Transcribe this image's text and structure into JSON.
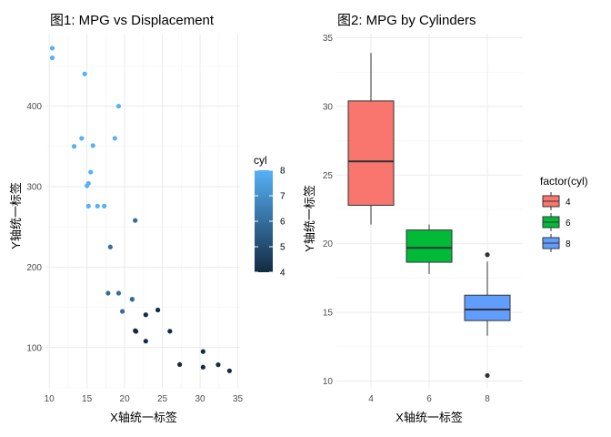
{
  "chart_data": [
    {
      "type": "scatter",
      "title": "图1: MPG vs Displacement",
      "xlabel": "X轴统一标签",
      "ylabel": "Y轴统一标签",
      "xlim": [
        9.5,
        35.3
      ],
      "ylim": [
        50,
        490
      ],
      "xticks": [
        "10",
        "15",
        "20",
        "25",
        "30",
        "35"
      ],
      "yticks": [
        "100",
        "200",
        "300",
        "400"
      ],
      "legend": {
        "title": "cyl",
        "position": "right",
        "labels": [
          "8",
          "7",
          "6",
          "5",
          "4"
        ],
        "low_color": "#132B43",
        "high_color": "#56B1F7"
      },
      "points": [
        {
          "x": 21.0,
          "y": 160,
          "cyl": 6
        },
        {
          "x": 21.0,
          "y": 160,
          "cyl": 6
        },
        {
          "x": 22.8,
          "y": 108,
          "cyl": 4
        },
        {
          "x": 21.4,
          "y": 258,
          "cyl": 6
        },
        {
          "x": 18.7,
          "y": 360,
          "cyl": 8
        },
        {
          "x": 18.1,
          "y": 225,
          "cyl": 6
        },
        {
          "x": 14.3,
          "y": 360,
          "cyl": 8
        },
        {
          "x": 24.4,
          "y": 146.7,
          "cyl": 4
        },
        {
          "x": 22.8,
          "y": 140.8,
          "cyl": 4
        },
        {
          "x": 19.2,
          "y": 167.6,
          "cyl": 6
        },
        {
          "x": 17.8,
          "y": 167.6,
          "cyl": 6
        },
        {
          "x": 16.4,
          "y": 275.8,
          "cyl": 8
        },
        {
          "x": 17.3,
          "y": 275.8,
          "cyl": 8
        },
        {
          "x": 15.2,
          "y": 275.8,
          "cyl": 8
        },
        {
          "x": 10.4,
          "y": 472,
          "cyl": 8
        },
        {
          "x": 10.4,
          "y": 460,
          "cyl": 8
        },
        {
          "x": 14.7,
          "y": 440,
          "cyl": 8
        },
        {
          "x": 32.4,
          "y": 78.7,
          "cyl": 4
        },
        {
          "x": 30.4,
          "y": 75.7,
          "cyl": 4
        },
        {
          "x": 33.9,
          "y": 71.1,
          "cyl": 4
        },
        {
          "x": 21.5,
          "y": 120.1,
          "cyl": 4
        },
        {
          "x": 15.5,
          "y": 318,
          "cyl": 8
        },
        {
          "x": 15.2,
          "y": 304,
          "cyl": 8
        },
        {
          "x": 13.3,
          "y": 350,
          "cyl": 8
        },
        {
          "x": 19.2,
          "y": 400,
          "cyl": 8
        },
        {
          "x": 27.3,
          "y": 79,
          "cyl": 4
        },
        {
          "x": 26.0,
          "y": 120.3,
          "cyl": 4
        },
        {
          "x": 30.4,
          "y": 95.1,
          "cyl": 4
        },
        {
          "x": 15.8,
          "y": 351,
          "cyl": 8
        },
        {
          "x": 19.7,
          "y": 145,
          "cyl": 6
        },
        {
          "x": 15.0,
          "y": 301,
          "cyl": 8
        },
        {
          "x": 21.4,
          "y": 121,
          "cyl": 4
        }
      ]
    },
    {
      "type": "box",
      "title": "图2: MPG by Cylinders",
      "xlabel": "X轴统一标签",
      "ylabel": "Y轴统一标签",
      "ylim": [
        9.5,
        35.3
      ],
      "xticks": [
        "4",
        "6",
        "8"
      ],
      "yticks": [
        "10",
        "15",
        "20",
        "25",
        "30",
        "35"
      ],
      "legend": {
        "title": "factor(cyl)",
        "position": "right"
      },
      "series": [
        {
          "name": "4",
          "color": "#F8766D",
          "min": 21.4,
          "q1": 22.8,
          "median": 26.0,
          "q3": 30.4,
          "max": 33.9,
          "outliers": []
        },
        {
          "name": "6",
          "color": "#00BA38",
          "min": 17.8,
          "q1": 18.65,
          "median": 19.7,
          "q3": 21.0,
          "max": 21.4,
          "outliers": []
        },
        {
          "name": "8",
          "color": "#619CFF",
          "min": 13.3,
          "q1": 14.4,
          "median": 15.2,
          "q3": 16.25,
          "max": 18.7,
          "outliers": [
            10.4,
            19.2
          ]
        }
      ]
    }
  ]
}
